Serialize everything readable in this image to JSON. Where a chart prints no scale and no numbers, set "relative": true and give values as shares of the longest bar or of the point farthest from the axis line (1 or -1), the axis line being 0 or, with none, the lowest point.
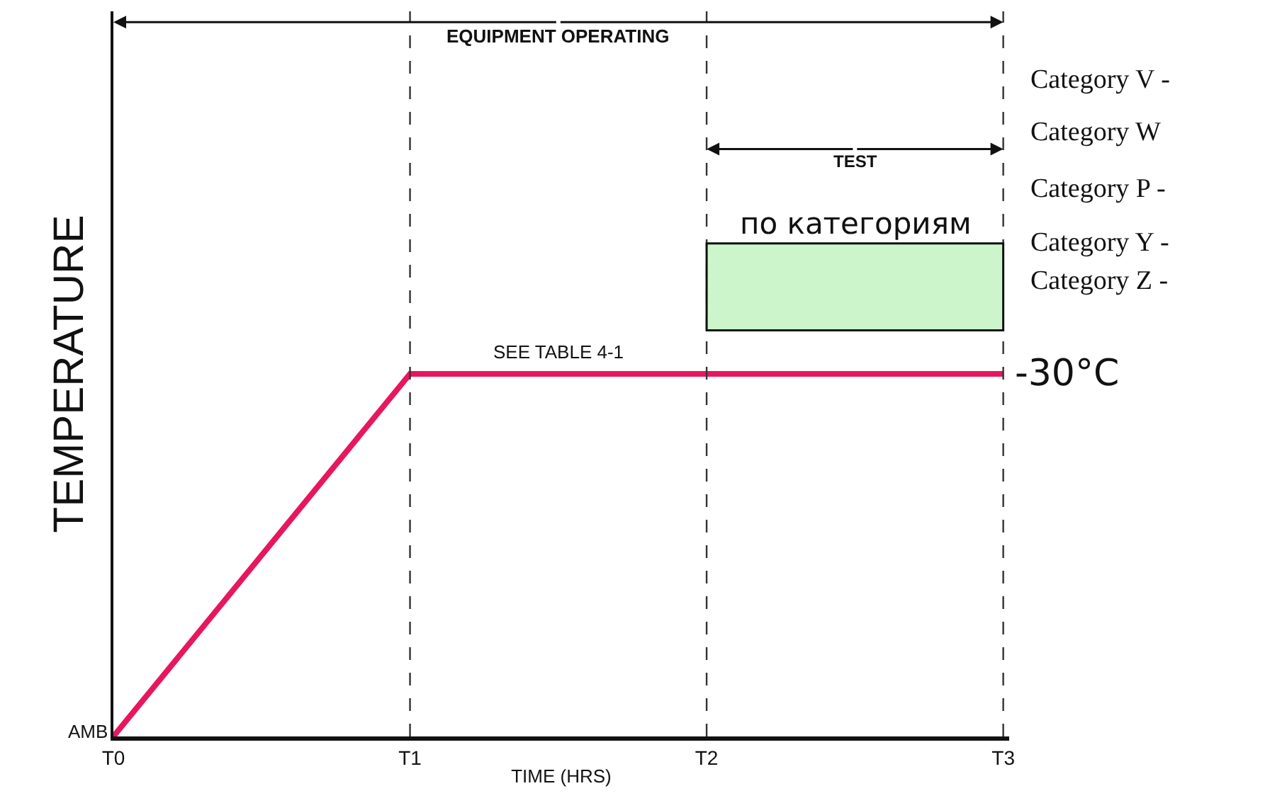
{
  "chart_data": {
    "type": "line",
    "relative": true,
    "xlabel": "TIME (HRS)",
    "ylabel": "TEMPERATURE",
    "categories": [
      "T0",
      "T1",
      "T2",
      "T3"
    ],
    "series": [
      {
        "color": "#e8175d",
        "values": [
          0,
          1,
          1,
          1
        ]
      }
    ],
    "ref_lines": [
      {
        "axis": "x",
        "value": "T1",
        "label": null,
        "line_style": "dashed",
        "color": "#333333"
      },
      {
        "axis": "x",
        "value": "T2",
        "label": null,
        "line_style": "dashed",
        "color": "#333333"
      },
      {
        "axis": "x",
        "value": "T3",
        "label": null,
        "line_style": "dashed",
        "color": "#333333"
      }
    ],
    "annotations": [
      "EQUIPMENT OPERATING",
      "TEST",
      "по категориям",
      "Category V -",
      "Category W",
      "Category P -",
      "Category Y -",
      "Category Z -",
      {
        "text": "SEE TABLE 4-1",
        "y": 1
      },
      {
        "text": "-30°C",
        "x": "T3",
        "y": 1
      },
      {
        "text": "AMB",
        "x": "T0",
        "y": 0
      }
    ],
    "grid": false,
    "legend": false,
    "marker": "none",
    "line_style": "solid"
  }
}
